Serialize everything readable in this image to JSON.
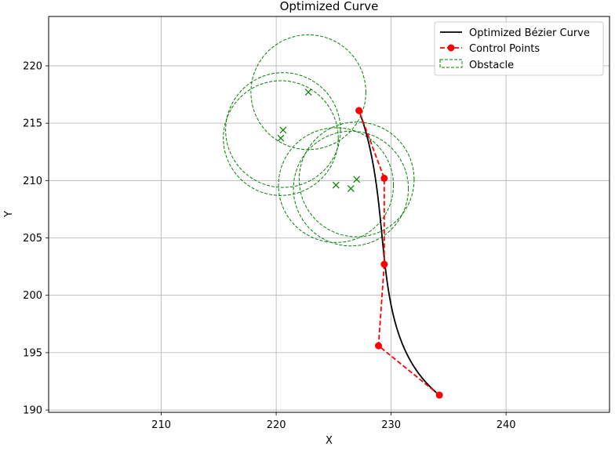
{
  "chart_data": {
    "type": "line",
    "title": "Optimized Curve",
    "xlabel": "X",
    "ylabel": "Y",
    "xlim": [
      200.2,
      249.0
    ],
    "ylim": [
      189.8,
      224.3
    ],
    "xticks": [
      210,
      220,
      230,
      240
    ],
    "yticks": [
      190,
      195,
      200,
      205,
      210,
      215,
      220
    ],
    "grid": true,
    "legend_position": "top-right",
    "legend": [
      {
        "label": "Optimized Bézier Curve",
        "style": "solid-line",
        "color": "#000000"
      },
      {
        "label": "Control Points",
        "style": "dashed-line-markers",
        "color": "#ff0000"
      },
      {
        "label": "Obstacle",
        "style": "dashed-patch",
        "color": "#008000"
      }
    ],
    "control_points": {
      "x": [
        234.2,
        228.9,
        229.4,
        229.4,
        227.2
      ],
      "y": [
        191.3,
        195.6,
        202.7,
        210.2,
        216.1
      ]
    },
    "obstacles": [
      {
        "center": [
          222.8,
          217.7
        ],
        "radius": 5.0
      },
      {
        "center": [
          220.6,
          214.4
        ],
        "radius": 5.0
      },
      {
        "center": [
          220.4,
          213.7
        ],
        "radius": 5.0
      },
      {
        "center": [
          227.0,
          210.1
        ],
        "radius": 5.0
      },
      {
        "center": [
          225.2,
          209.6
        ],
        "radius": 5.0
      },
      {
        "center": [
          226.5,
          209.3
        ],
        "radius": 5.0
      }
    ]
  }
}
